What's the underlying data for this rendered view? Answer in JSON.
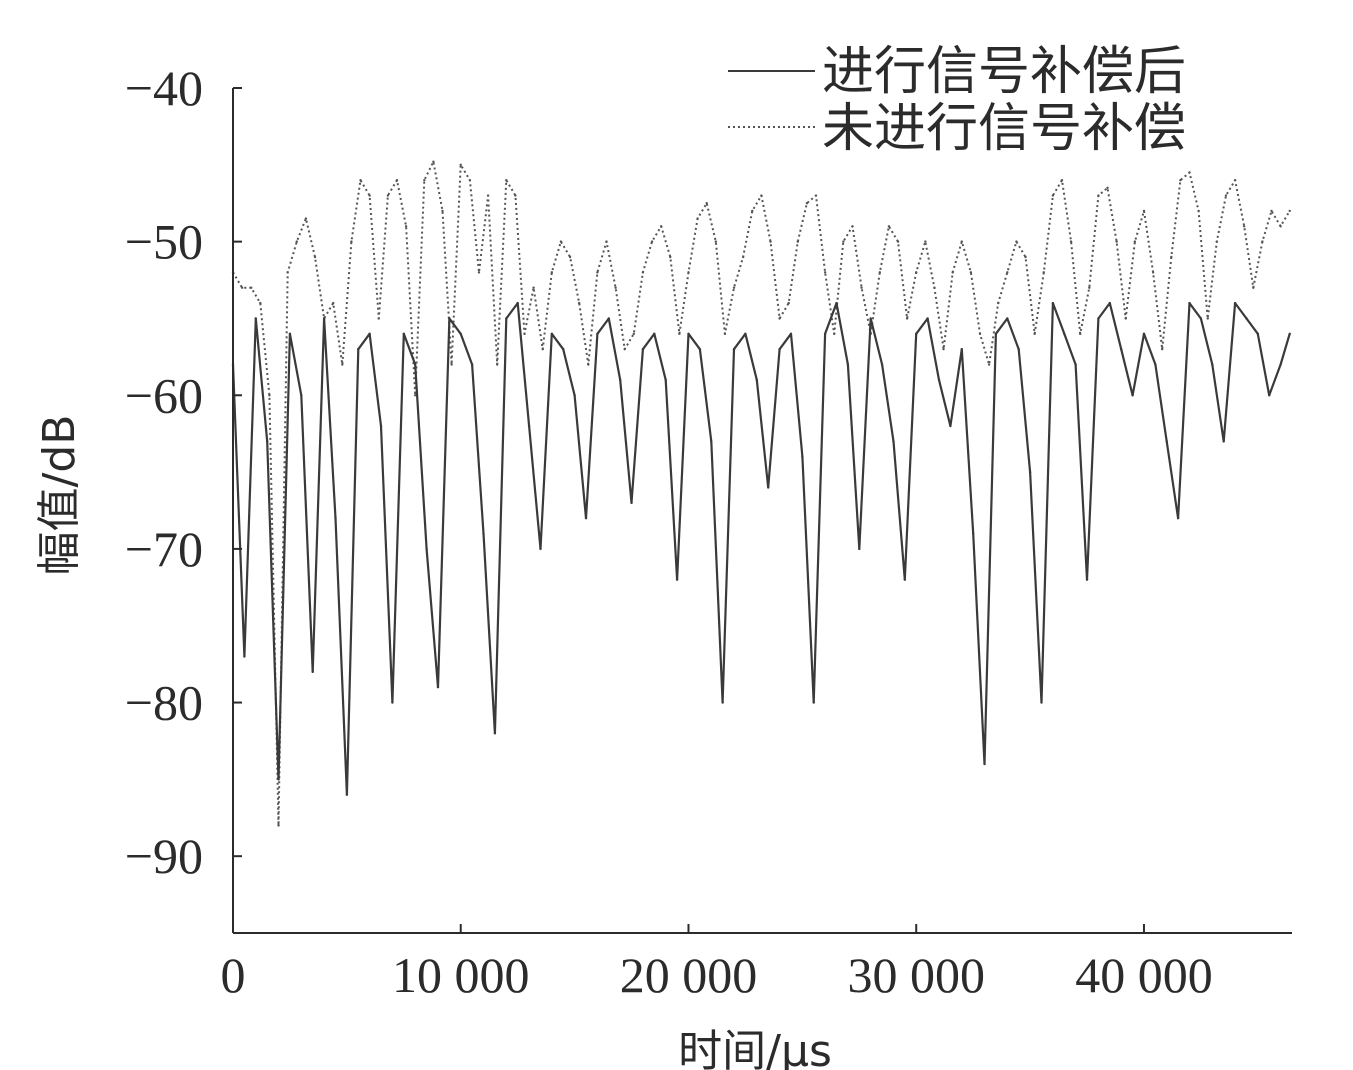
{
  "chart_data": {
    "type": "line",
    "title": "",
    "xlabel": "时间/μs",
    "ylabel": "幅值/dB",
    "xlim": [
      0,
      46500
    ],
    "ylim": [
      -95,
      -40
    ],
    "xticks": [
      0,
      10000,
      20000,
      30000,
      40000
    ],
    "xtick_labels": [
      "0",
      "10 000",
      "20 000",
      "30 000",
      "40 000"
    ],
    "yticks": [
      -40,
      -50,
      -60,
      -70,
      -80,
      -90
    ],
    "ytick_labels": [
      "−40",
      "−50",
      "−60",
      "−70",
      "−80",
      "−90"
    ],
    "grid": false,
    "legend_position": "top-right",
    "series": [
      {
        "name": "进行信号补偿后",
        "style": "solid",
        "color": "#3a3a3a",
        "x": [
          0,
          500,
          1000,
          1500,
          2000,
          2500,
          3000,
          3500,
          4000,
          4500,
          5000,
          5500,
          6000,
          6500,
          7000,
          7500,
          8000,
          8500,
          9000,
          9500,
          10000,
          10500,
          11000,
          11500,
          12000,
          12500,
          13000,
          13500,
          14000,
          14500,
          15000,
          15500,
          16000,
          16500,
          17000,
          17500,
          18000,
          18500,
          19000,
          19500,
          20000,
          20500,
          21000,
          21500,
          22000,
          22500,
          23000,
          23500,
          24000,
          24500,
          25000,
          25500,
          26000,
          26500,
          27000,
          27500,
          28000,
          28500,
          29000,
          29500,
          30000,
          30500,
          31000,
          31500,
          32000,
          32500,
          33000,
          33500,
          34000,
          34500,
          35000,
          35500,
          36000,
          36500,
          37000,
          37500,
          38000,
          38500,
          39000,
          39500,
          40000,
          40500,
          41000,
          41500,
          42000,
          42500,
          43000,
          43500,
          44000,
          44500,
          45000,
          45500,
          46000,
          46400
        ],
        "y": [
          -58,
          -77,
          -55,
          -63,
          -85,
          -56,
          -60,
          -78,
          -55,
          -68,
          -86,
          -57,
          -56,
          -62,
          -80,
          -56,
          -58,
          -70,
          -79,
          -55,
          -56,
          -58,
          -69,
          -82,
          -55,
          -54,
          -62,
          -70,
          -56,
          -57,
          -60,
          -68,
          -56,
          -55,
          -59,
          -67,
          -57,
          -56,
          -59,
          -72,
          -56,
          -57,
          -63,
          -80,
          -57,
          -56,
          -59,
          -66,
          -57,
          -56,
          -64,
          -80,
          -56,
          -54,
          -58,
          -70,
          -55,
          -58,
          -63,
          -72,
          -56,
          -55,
          -59,
          -62,
          -57,
          -69,
          -84,
          -56,
          -55,
          -57,
          -65,
          -80,
          -54,
          -56,
          -58,
          -72,
          -55,
          -54,
          -57,
          -60,
          -56,
          -58,
          -63,
          -68,
          -54,
          -55,
          -58,
          -63,
          -54,
          -55,
          -56,
          -60,
          -58,
          -56
        ]
      },
      {
        "name": "未进行信号补偿",
        "style": "dotted",
        "color": "#555555",
        "x": [
          0,
          400,
          800,
          1200,
          1600,
          2000,
          2400,
          2800,
          3200,
          3600,
          4000,
          4400,
          4800,
          5200,
          5600,
          6000,
          6400,
          6800,
          7200,
          7600,
          8000,
          8400,
          8800,
          9200,
          9600,
          10000,
          10400,
          10800,
          11200,
          11600,
          12000,
          12400,
          12800,
          13200,
          13600,
          14000,
          14400,
          14800,
          15200,
          15600,
          16000,
          16400,
          16800,
          17200,
          17600,
          18000,
          18400,
          18800,
          19200,
          19600,
          20000,
          20400,
          20800,
          21200,
          21600,
          22000,
          22400,
          22800,
          23200,
          23600,
          24000,
          24400,
          24800,
          25200,
          25600,
          26000,
          26400,
          26800,
          27200,
          27600,
          28000,
          28400,
          28800,
          29200,
          29600,
          30000,
          30400,
          30800,
          31200,
          31600,
          32000,
          32400,
          32800,
          33200,
          33600,
          34000,
          34400,
          34800,
          35200,
          35600,
          36000,
          36400,
          36800,
          37200,
          37600,
          38000,
          38400,
          38800,
          39200,
          39600,
          40000,
          40400,
          40800,
          41200,
          41600,
          42000,
          42400,
          42800,
          43200,
          43600,
          44000,
          44400,
          44800,
          45200,
          45600,
          46000,
          46400
        ],
        "y": [
          -52,
          -53,
          -53,
          -54,
          -60,
          -88,
          -52,
          -50,
          -48.5,
          -51,
          -55,
          -54,
          -58,
          -50,
          -46,
          -47,
          -55,
          -47,
          -46,
          -49,
          -60,
          -46,
          -44.8,
          -48,
          -58,
          -45,
          -46,
          -52,
          -47,
          -58,
          -46,
          -47,
          -56,
          -53,
          -57,
          -52,
          -50,
          -51,
          -54,
          -58,
          -52,
          -50,
          -53,
          -57,
          -56,
          -52,
          -50,
          -49,
          -51,
          -56,
          -52,
          -48.5,
          -47.5,
          -50,
          -56,
          -53,
          -51,
          -48,
          -47,
          -50,
          -55,
          -54,
          -50,
          -47.5,
          -47,
          -52,
          -56,
          -50,
          -49,
          -53,
          -56,
          -52,
          -49,
          -50,
          -55,
          -52,
          -50,
          -53,
          -57,
          -52,
          -50,
          -52,
          -56,
          -58,
          -54,
          -52,
          -50,
          -51,
          -56,
          -52,
          -47,
          -46,
          -50,
          -56,
          -53,
          -47,
          -46.5,
          -50,
          -55,
          -50,
          -48,
          -52,
          -57,
          -51,
          -46,
          -45.5,
          -48,
          -55,
          -50,
          -47,
          -46,
          -49,
          -53,
          -50,
          -48,
          -49,
          -48
        ]
      }
    ]
  }
}
